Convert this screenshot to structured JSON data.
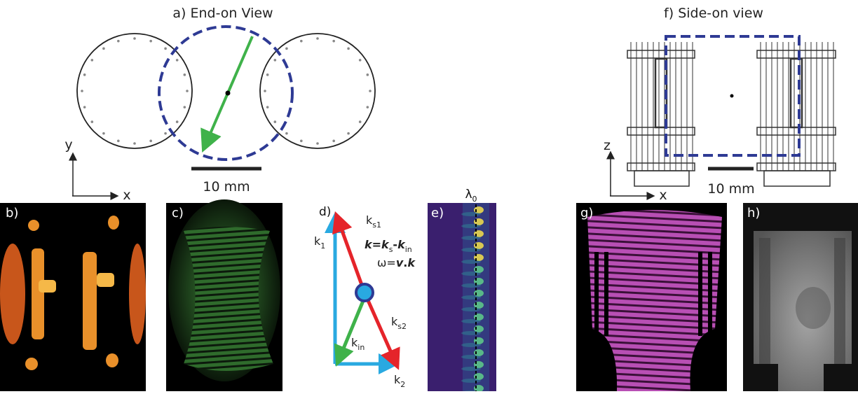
{
  "panels": {
    "a": {
      "title": "a) End-on View",
      "axis_y": "y",
      "axis_x": "x",
      "scale": "10 mm"
    },
    "f": {
      "title": "f) Side-on view",
      "axis_z": "z",
      "axis_x": "x",
      "scale": "10 mm"
    },
    "b": {
      "label": "b)"
    },
    "c": {
      "label": "c)"
    },
    "d": {
      "label": "d)",
      "k_s1": {
        "base": "k",
        "sub": "s1"
      },
      "k_1": {
        "base": "k",
        "sub": "1"
      },
      "k_s2": {
        "base": "k",
        "sub": "s2"
      },
      "k_in": {
        "base": "k",
        "sub": "in"
      },
      "k_2": {
        "base": "k",
        "sub": "2"
      },
      "equation_1": [
        "k",
        "=",
        "k",
        "s",
        "-",
        "k",
        "in"
      ],
      "equation_2": [
        "ω=",
        "v",
        ".",
        "k"
      ]
    },
    "e": {
      "label": "e)",
      "lambda": {
        "base": "λ",
        "sub": "0"
      }
    },
    "g": {
      "label": "g)"
    },
    "h": {
      "label": "h)"
    }
  }
}
